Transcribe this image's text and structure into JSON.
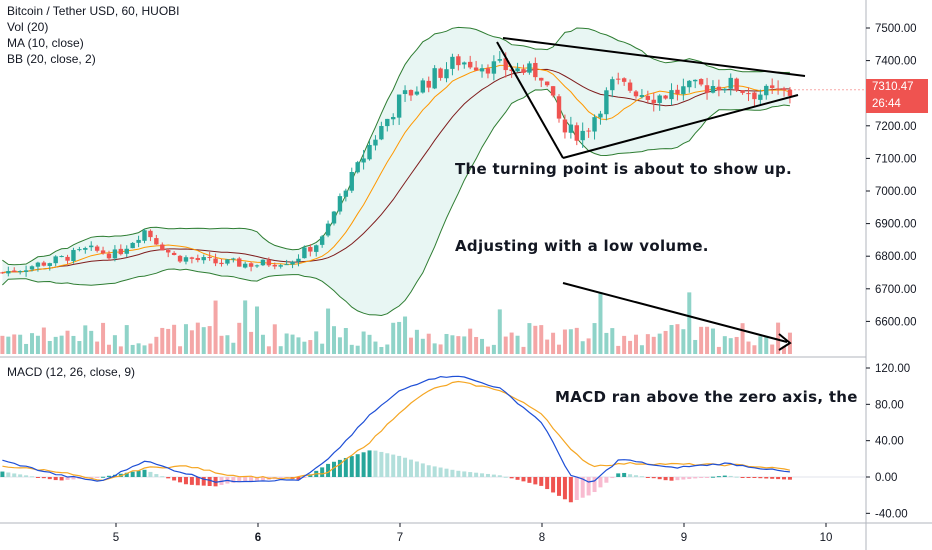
{
  "chart_data": [
    {
      "type": "candlestick",
      "title": "Bitcoin / Tether USD, 60, HUOBI",
      "indicators": [
        "Vol (20)",
        "MA (10, close)",
        "BB (20, close, 2)"
      ],
      "x_ticks": [
        "5",
        "6",
        "7",
        "8",
        "9",
        "10"
      ],
      "y_ticks": [
        "6600.00",
        "6700.00",
        "6800.00",
        "6900.00",
        "7000.00",
        "7100.00",
        "7200.00",
        "7300.00",
        "7400.00",
        "7500.00"
      ],
      "ylim": [
        6500,
        7550
      ],
      "last_price": "7310.47",
      "countdown": "26:44",
      "price_anchor_path": [
        [
          4.2,
          6750
        ],
        [
          4.4,
          6770
        ],
        [
          4.6,
          6790
        ],
        [
          4.8,
          6820
        ],
        [
          5.0,
          6805
        ],
        [
          5.2,
          6880
        ],
        [
          5.4,
          6800
        ],
        [
          5.7,
          6780
        ],
        [
          6.0,
          6775
        ],
        [
          6.25,
          6790
        ],
        [
          6.45,
          6850
        ],
        [
          6.6,
          7000
        ],
        [
          6.8,
          7150
        ],
        [
          7.0,
          7280
        ],
        [
          7.2,
          7340
        ],
        [
          7.4,
          7400
        ],
        [
          7.7,
          7380
        ],
        [
          8.0,
          7360
        ],
        [
          8.15,
          7180
        ],
        [
          8.3,
          7180
        ],
        [
          8.5,
          7330
        ],
        [
          8.8,
          7290
        ],
        [
          9.0,
          7310
        ],
        [
          9.3,
          7330
        ],
        [
          9.5,
          7300
        ],
        [
          9.75,
          7300
        ]
      ],
      "annotations": [
        "The turning point is about to show up.",
        "Adjusting with a low volume."
      ],
      "colors": {
        "up": "#26a69a",
        "down": "#ef5350",
        "ma": "#ff9800",
        "bb_basis": "#7f1d1d",
        "bb_band": "#2e7d32",
        "bb_fill": "#e8f6f3",
        "vol_up": "#8fd3c8",
        "vol_down": "#f4a6a6"
      }
    },
    {
      "type": "macd",
      "title": "MACD (12, 26, close, 9)",
      "y_ticks": [
        "120.00",
        "80.00",
        "40.00",
        "0.00",
        "-40.00"
      ],
      "ylim": [
        -48,
        126
      ],
      "macd_anchor_path": [
        [
          4.2,
          18
        ],
        [
          4.6,
          2
        ],
        [
          4.9,
          -5
        ],
        [
          5.2,
          18
        ],
        [
          5.4,
          8
        ],
        [
          5.7,
          -5
        ],
        [
          6.0,
          -4
        ],
        [
          6.3,
          -3
        ],
        [
          6.5,
          20
        ],
        [
          6.8,
          70
        ],
        [
          7.0,
          95
        ],
        [
          7.2,
          108
        ],
        [
          7.4,
          112
        ],
        [
          7.7,
          98
        ],
        [
          8.0,
          60
        ],
        [
          8.2,
          2
        ],
        [
          8.35,
          -7
        ],
        [
          8.55,
          20
        ],
        [
          8.9,
          10
        ],
        [
          9.3,
          15
        ],
        [
          9.75,
          5
        ]
      ],
      "signal_anchor_path": [
        [
          4.2,
          12
        ],
        [
          4.6,
          6
        ],
        [
          4.9,
          -5
        ],
        [
          5.2,
          10
        ],
        [
          5.5,
          12
        ],
        [
          5.8,
          2
        ],
        [
          6.2,
          -2
        ],
        [
          6.5,
          5
        ],
        [
          6.8,
          40
        ],
        [
          7.0,
          72
        ],
        [
          7.2,
          95
        ],
        [
          7.4,
          105
        ],
        [
          7.7,
          96
        ],
        [
          8.0,
          70
        ],
        [
          8.2,
          30
        ],
        [
          8.35,
          12
        ],
        [
          8.6,
          15
        ],
        [
          9.0,
          14
        ],
        [
          9.4,
          13
        ],
        [
          9.75,
          8
        ]
      ],
      "annotation": "MACD ran above the zero axis, the",
      "colors": {
        "macd": "#1e4fd6",
        "signal": "#f5a623",
        "hist_pos_strong": "#26a69a",
        "hist_pos_weak": "#b2dfdb",
        "hist_neg_strong": "#ef5350",
        "hist_neg_weak": "#f8bbd0"
      }
    }
  ]
}
